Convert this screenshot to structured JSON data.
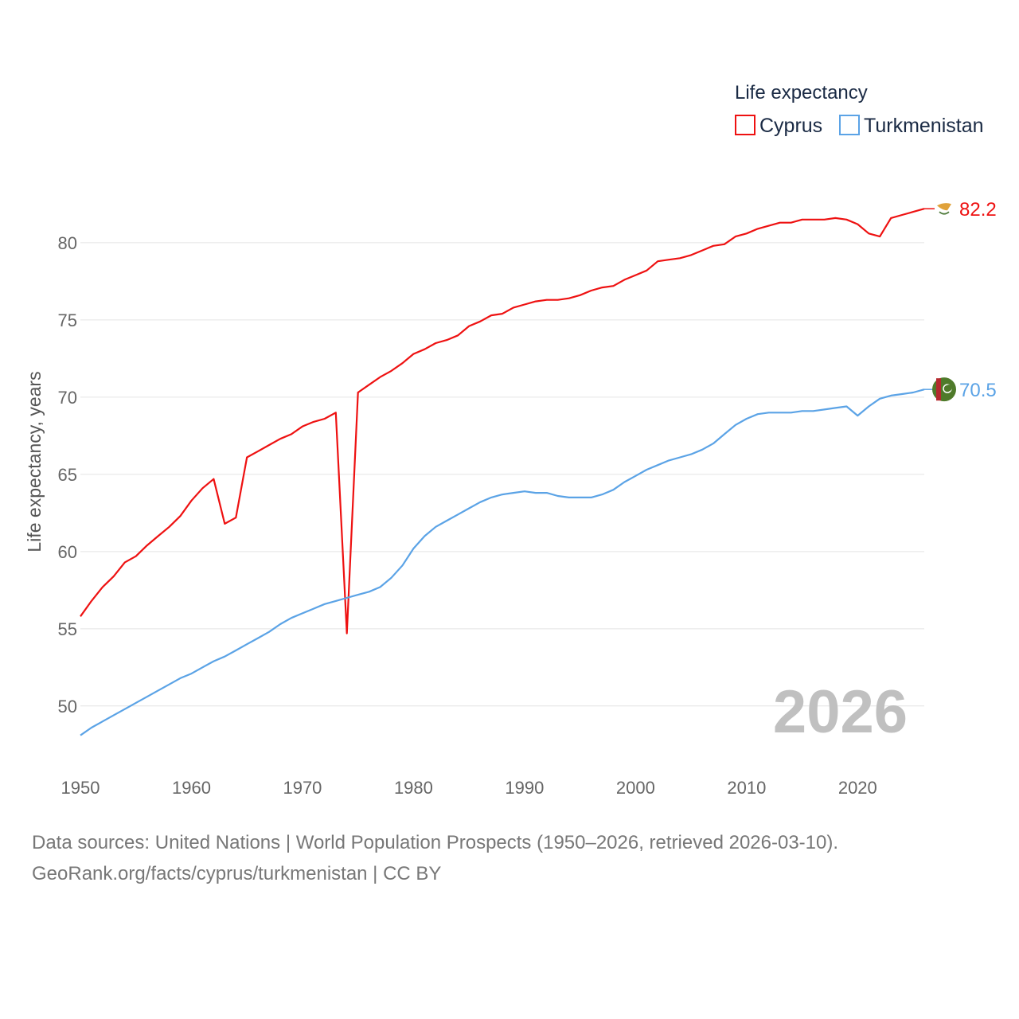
{
  "chart_data": {
    "type": "line",
    "title": "",
    "legend_title": "Life expectancy",
    "legend_position": "top-right",
    "ylabel": "Life expectancy, years",
    "xlabel": "",
    "xlim": [
      1950,
      2026
    ],
    "ylim": [
      47,
      83.5
    ],
    "x_ticks": [
      1950,
      1960,
      1970,
      1980,
      1990,
      2000,
      2010,
      2020
    ],
    "y_ticks": [
      50,
      55,
      60,
      65,
      70,
      75,
      80
    ],
    "grid": true,
    "current_year_label": "2026",
    "x": [
      1950,
      1951,
      1952,
      1953,
      1954,
      1955,
      1956,
      1957,
      1958,
      1959,
      1960,
      1961,
      1962,
      1963,
      1964,
      1965,
      1966,
      1967,
      1968,
      1969,
      1970,
      1971,
      1972,
      1973,
      1974,
      1975,
      1976,
      1977,
      1978,
      1979,
      1980,
      1981,
      1982,
      1983,
      1984,
      1985,
      1986,
      1987,
      1988,
      1989,
      1990,
      1991,
      1992,
      1993,
      1994,
      1995,
      1996,
      1997,
      1998,
      1999,
      2000,
      2001,
      2002,
      2003,
      2004,
      2005,
      2006,
      2007,
      2008,
      2009,
      2010,
      2011,
      2012,
      2013,
      2014,
      2015,
      2016,
      2017,
      2018,
      2019,
      2020,
      2021,
      2022,
      2023,
      2024,
      2025,
      2026
    ],
    "series": [
      {
        "name": "Cyprus",
        "color": "#ee1111",
        "end_label": "82.2",
        "flag_icon": "cyprus-flag-icon",
        "values": [
          55.8,
          56.8,
          57.7,
          58.4,
          59.3,
          59.7,
          60.4,
          61.0,
          61.6,
          62.3,
          63.3,
          64.1,
          64.7,
          61.8,
          62.2,
          66.1,
          66.5,
          66.9,
          67.3,
          67.6,
          68.1,
          68.4,
          68.6,
          69.0,
          54.7,
          70.3,
          70.8,
          71.3,
          71.7,
          72.2,
          72.8,
          73.1,
          73.5,
          73.7,
          74.0,
          74.6,
          74.9,
          75.3,
          75.4,
          75.8,
          76.0,
          76.2,
          76.3,
          76.3,
          76.4,
          76.6,
          76.9,
          77.1,
          77.2,
          77.6,
          77.9,
          78.2,
          78.8,
          78.9,
          79.0,
          79.2,
          79.5,
          79.8,
          79.9,
          80.4,
          80.6,
          80.9,
          81.1,
          81.3,
          81.3,
          81.5,
          81.5,
          81.5,
          81.6,
          81.5,
          81.2,
          80.6,
          80.4,
          81.6,
          81.8,
          82.0,
          82.2
        ]
      },
      {
        "name": "Turkmenistan",
        "color": "#5ba3e6",
        "end_label": "70.5",
        "flag_icon": "turkmenistan-flag-icon",
        "values": [
          48.1,
          48.6,
          49.0,
          49.4,
          49.8,
          50.2,
          50.6,
          51.0,
          51.4,
          51.8,
          52.1,
          52.5,
          52.9,
          53.2,
          53.6,
          54.0,
          54.4,
          54.8,
          55.3,
          55.7,
          56.0,
          56.3,
          56.6,
          56.8,
          57.0,
          57.2,
          57.4,
          57.7,
          58.3,
          59.1,
          60.2,
          61.0,
          61.6,
          62.0,
          62.4,
          62.8,
          63.2,
          63.5,
          63.7,
          63.8,
          63.9,
          63.8,
          63.8,
          63.6,
          63.5,
          63.5,
          63.5,
          63.7,
          64.0,
          64.5,
          64.9,
          65.3,
          65.6,
          65.9,
          66.1,
          66.3,
          66.6,
          67.0,
          67.6,
          68.2,
          68.6,
          68.9,
          69.0,
          69.0,
          69.0,
          69.1,
          69.1,
          69.2,
          69.3,
          69.4,
          68.8,
          69.4,
          69.9,
          70.1,
          70.2,
          70.3,
          70.5
        ]
      }
    ]
  },
  "footer": {
    "line1": "Data sources: United Nations | World Population Prospects (1950–2026, retrieved 2026-03-10).",
    "line2": "GeoRank.org/facts/cyprus/turkmenistan | CC BY"
  }
}
